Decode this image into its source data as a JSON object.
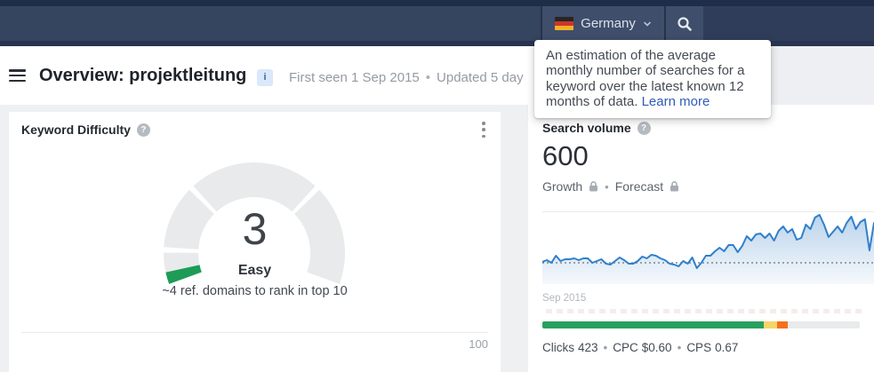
{
  "ui": {
    "dot": "•"
  },
  "topbar": {
    "country": "Germany",
    "flag_colors": [
      "#262626",
      "#cf3427",
      "#f2b22a"
    ]
  },
  "header": {
    "title": "Overview: projektleitung",
    "badge": "i",
    "meta_first_seen": "First seen 1 Sep 2015",
    "meta_updated": "Updated 5 day"
  },
  "tooltip": {
    "text": "An estimation of the average monthly number of searches for a keyword over the latest known 12 months of data. ",
    "link": "Learn more"
  },
  "kd_card": {
    "title": "Keyword Difficulty",
    "help": "?",
    "value": "3",
    "label": "Easy",
    "caption": "~4 ref. domains to rank in top 10",
    "scale_max": "100"
  },
  "volume_card": {
    "title": "Search volume",
    "help": "?",
    "value": "600",
    "growth_label": "Growth",
    "forecast_label": "Forecast",
    "x_start_label": "Sep 2015",
    "metrics": [
      {
        "label": "Clicks",
        "value": "423"
      },
      {
        "label": "CPC",
        "value": "$0.60"
      },
      {
        "label": "CPS",
        "value": "0.67"
      }
    ]
  },
  "chart_data": [
    {
      "type": "area",
      "title": "Search volume trend",
      "x_start_label": "Sep 2015",
      "x_note": "monthly points starting Sep 2015, right edge cropped",
      "average_line": 600,
      "y_note": "relative monthly search volume; dotted line = 600 average",
      "values": [
        610,
        630,
        600,
        680,
        620,
        640,
        640,
        650,
        630,
        650,
        650,
        600,
        620,
        640,
        590,
        580,
        620,
        660,
        630,
        590,
        590,
        620,
        670,
        650,
        690,
        680,
        650,
        630,
        590,
        580,
        560,
        620,
        590,
        660,
        540,
        600,
        680,
        680,
        730,
        770,
        730,
        800,
        800,
        720,
        790,
        900,
        850,
        920,
        930,
        880,
        930,
        850,
        960,
        1010,
        940,
        980,
        860,
        880,
        1030,
        980,
        1110,
        1140,
        1030,
        890,
        950,
        1010,
        940,
        1050,
        1120,
        980,
        1060,
        1090,
        740,
        1050
      ],
      "grid": false,
      "line_color": "#2f80cc",
      "fill_color": "#3b82c7",
      "dotted_line_color": "#80878e",
      "top_border_color": "#e7e9eb"
    },
    {
      "type": "gauge",
      "title": "Keyword Difficulty",
      "value": 3,
      "max": 100,
      "label": "Easy",
      "segment_boundaries": [
        10,
        30,
        70
      ],
      "value_color": "#1d9b57",
      "track_color": "#e9eaeb",
      "sweep_degrees": 220
    },
    {
      "type": "stacked-bar",
      "title": "Clicks breakdown",
      "segments": [
        {
          "name": "green",
          "color": "#2aa05d",
          "pct": 69.7
        },
        {
          "name": "yellow",
          "color": "#f6d46b",
          "pct": 4.3
        },
        {
          "name": "orange",
          "color": "#f4701d",
          "pct": 3.2
        },
        {
          "name": "track",
          "color": "#e8eaec",
          "pct": 22.8
        }
      ]
    }
  ]
}
